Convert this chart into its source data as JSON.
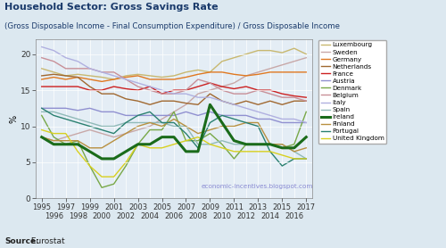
{
  "title": "Household Sector: Gross Savings Rate",
  "subtitle": "(Gross Disposable Income - Final Consumption Expenditure) / Gross Disposable Income",
  "ylabel": "%",
  "source_bold": "Source:",
  "source_normal": " Eurostat",
  "watermark": "economic-incentives.blogspot.com",
  "years": [
    1995,
    1996,
    1997,
    1998,
    1999,
    2000,
    2001,
    2002,
    2003,
    2004,
    2005,
    2006,
    2007,
    2008,
    2009,
    2010,
    2011,
    2012,
    2013,
    2014,
    2015,
    2016,
    2017
  ],
  "background_color": "#dce8f0",
  "plot_bg_color": "#e4edf5",
  "title_color": "#1a3a6b",
  "subtitle_color": "#1a3a6b",
  "series": [
    {
      "name": "Luxembourg",
      "color": "#c8b870",
      "linewidth": 1.0,
      "zorder": 2,
      "values": [
        18.0,
        17.5,
        17.0,
        17.2,
        17.0,
        16.8,
        16.5,
        17.0,
        17.2,
        17.0,
        16.8,
        17.0,
        17.5,
        17.8,
        17.5,
        19.0,
        19.5,
        20.0,
        20.5,
        20.5,
        20.2,
        20.8,
        20.0
      ]
    },
    {
      "name": "Sweden",
      "color": "#c8a8a8",
      "linewidth": 1.0,
      "zorder": 2,
      "values": [
        8.5,
        8.0,
        8.5,
        9.0,
        9.5,
        9.0,
        8.5,
        9.0,
        9.5,
        10.0,
        11.0,
        12.0,
        13.0,
        14.5,
        15.0,
        15.5,
        16.0,
        17.0,
        17.5,
        18.0,
        18.5,
        19.0,
        19.5
      ]
    },
    {
      "name": "Germany",
      "color": "#e07820",
      "linewidth": 1.0,
      "zorder": 2,
      "values": [
        16.5,
        16.8,
        16.5,
        16.8,
        16.5,
        16.2,
        16.5,
        16.8,
        17.0,
        16.5,
        16.5,
        16.5,
        16.8,
        17.2,
        17.5,
        17.5,
        17.2,
        17.0,
        17.2,
        17.5,
        17.5,
        17.5,
        17.5
      ]
    },
    {
      "name": "Netherlands",
      "color": "#a06830",
      "linewidth": 1.0,
      "zorder": 2,
      "values": [
        17.0,
        17.2,
        17.0,
        16.8,
        15.5,
        14.5,
        14.5,
        13.8,
        13.5,
        13.0,
        13.5,
        13.5,
        13.2,
        13.0,
        14.5,
        13.5,
        13.0,
        13.5,
        13.0,
        13.5,
        13.0,
        13.5,
        13.5
      ]
    },
    {
      "name": "France",
      "color": "#cc2020",
      "linewidth": 1.0,
      "zorder": 2,
      "values": [
        15.5,
        15.5,
        15.5,
        15.5,
        15.0,
        15.0,
        15.5,
        15.2,
        15.0,
        15.5,
        14.5,
        15.0,
        15.0,
        15.5,
        16.0,
        15.5,
        15.2,
        15.5,
        15.0,
        15.0,
        14.5,
        14.2,
        14.0
      ]
    },
    {
      "name": "Austria",
      "color": "#9090d0",
      "linewidth": 1.0,
      "zorder": 2,
      "values": [
        12.5,
        12.5,
        12.5,
        12.2,
        12.5,
        12.0,
        12.0,
        11.5,
        11.5,
        11.5,
        11.5,
        11.5,
        12.0,
        11.5,
        12.0,
        11.5,
        11.5,
        11.5,
        11.0,
        11.0,
        10.5,
        10.5,
        10.5
      ]
    },
    {
      "name": "Denmark",
      "color": "#78a848",
      "linewidth": 1.0,
      "zorder": 2,
      "values": [
        11.5,
        8.5,
        7.5,
        8.0,
        4.5,
        1.5,
        2.0,
        4.5,
        7.5,
        9.5,
        9.5,
        12.0,
        8.0,
        8.0,
        9.0,
        7.5,
        5.5,
        7.5,
        7.5,
        7.5,
        7.0,
        7.5,
        12.0
      ]
    },
    {
      "name": "Belgium",
      "color": "#c89098",
      "linewidth": 1.0,
      "zorder": 2,
      "values": [
        19.5,
        19.0,
        18.0,
        18.0,
        18.0,
        17.5,
        17.5,
        16.5,
        15.5,
        15.0,
        14.5,
        14.5,
        15.0,
        16.5,
        16.0,
        15.0,
        14.5,
        14.5,
        15.0,
        14.5,
        14.0,
        14.0,
        13.5
      ]
    },
    {
      "name": "Italy",
      "color": "#b0b0e0",
      "linewidth": 1.0,
      "zorder": 2,
      "values": [
        21.0,
        20.5,
        19.5,
        19.0,
        18.0,
        17.5,
        17.0,
        16.5,
        16.0,
        15.5,
        15.0,
        14.5,
        14.5,
        14.0,
        14.0,
        13.5,
        13.0,
        12.5,
        12.0,
        11.5,
        11.0,
        11.0,
        10.5
      ]
    },
    {
      "name": "Spain",
      "color": "#90bab8",
      "linewidth": 1.0,
      "zorder": 2,
      "values": [
        12.0,
        12.0,
        11.5,
        11.0,
        10.5,
        10.0,
        10.0,
        10.5,
        10.5,
        10.5,
        10.5,
        10.0,
        10.0,
        7.5,
        7.5,
        8.0,
        7.5,
        7.5,
        7.5,
        7.5,
        7.5,
        6.5,
        5.5
      ]
    },
    {
      "name": "Ireland",
      "color": "#1a6b1a",
      "linewidth": 2.2,
      "zorder": 5,
      "values": [
        8.5,
        7.5,
        7.5,
        7.5,
        6.5,
        5.5,
        5.5,
        6.5,
        7.5,
        7.5,
        8.5,
        8.5,
        6.5,
        6.5,
        13.0,
        10.5,
        8.0,
        7.5,
        7.5,
        7.5,
        7.0,
        7.0,
        8.5
      ]
    },
    {
      "name": "Finland",
      "color": "#b89040",
      "linewidth": 1.0,
      "zorder": 2,
      "values": [
        8.5,
        8.0,
        8.0,
        8.0,
        7.0,
        7.0,
        8.0,
        9.0,
        10.0,
        10.5,
        10.0,
        11.0,
        10.0,
        9.0,
        9.5,
        10.0,
        10.0,
        10.5,
        10.5,
        7.5,
        7.5,
        6.5,
        7.0
      ]
    },
    {
      "name": "Portugal",
      "color": "#2a8070",
      "linewidth": 1.0,
      "zorder": 2,
      "values": [
        12.5,
        11.5,
        11.0,
        10.5,
        10.0,
        9.5,
        9.0,
        10.5,
        11.5,
        12.0,
        10.5,
        10.5,
        9.0,
        7.0,
        10.5,
        11.5,
        11.0,
        10.5,
        10.0,
        6.5,
        4.5,
        5.5,
        5.5
      ]
    },
    {
      "name": "United Kingdom",
      "color": "#d8d020",
      "linewidth": 1.0,
      "zorder": 2,
      "values": [
        9.5,
        9.0,
        9.0,
        6.5,
        4.5,
        3.0,
        3.0,
        5.0,
        7.5,
        7.0,
        7.0,
        7.5,
        8.0,
        8.5,
        7.5,
        7.0,
        6.5,
        6.5,
        6.5,
        6.5,
        6.0,
        5.5,
        5.5
      ]
    }
  ]
}
